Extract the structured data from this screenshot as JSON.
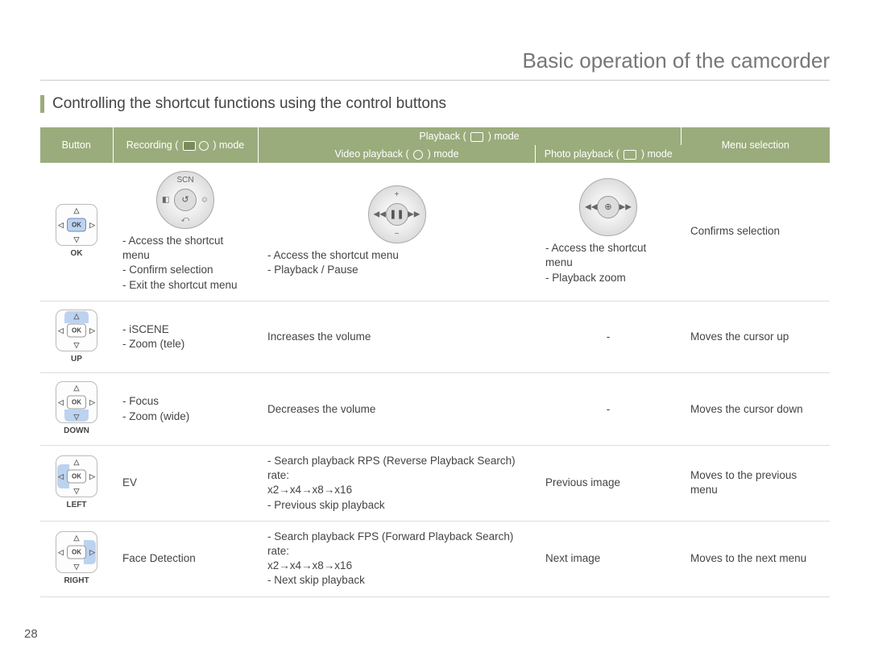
{
  "page_number": "28",
  "header_title": "Basic operation of the camcorder",
  "subtitle": "Controlling the shortcut functions using the control buttons",
  "colors": {
    "header_bg": "#9aac7c",
    "accent_border": "#9aac7c",
    "highlight": "#bcd3f0",
    "text": "#444444",
    "rule": "#dddddd"
  },
  "table_headers": {
    "button": "Button",
    "recording": "Recording (",
    "recording_suffix": ") mode",
    "playback": "Playback (",
    "playback_suffix": ") mode",
    "video_playback": "Video playback (",
    "video_playback_suffix": ") mode",
    "photo_playback": "Photo playback (",
    "photo_playback_suffix": ") mode",
    "menu_selection": "Menu selection"
  },
  "rows": [
    {
      "button_label": "OK",
      "highlight": "ok",
      "wheel_variant": "all",
      "recording": "- Access the shortcut menu\n- Confirm selection\n- Exit the shortcut menu",
      "video": "- Access the shortcut menu\n- Playback / Pause",
      "photo": "- Access the shortcut menu\n- Playback zoom",
      "menu": "Confirms selection"
    },
    {
      "button_label": "UP",
      "highlight": "up",
      "recording": "- iSCENE\n- Zoom (tele)",
      "video": "Increases the volume",
      "photo": "-",
      "menu": "Moves the cursor up"
    },
    {
      "button_label": "DOWN",
      "highlight": "down",
      "recording": "- Focus\n- Zoom (wide)",
      "video": "Decreases the volume",
      "photo": "-",
      "menu": "Moves the cursor down"
    },
    {
      "button_label": "LEFT",
      "highlight": "left",
      "recording": "EV",
      "video": "- Search playback RPS (Reverse Playback Search) rate:\n  x2→x4→x8→x16\n- Previous skip playback",
      "photo": "Previous image",
      "menu": "Moves to the previous menu"
    },
    {
      "button_label": "RIGHT",
      "highlight": "right",
      "recording": "Face Detection",
      "video": "- Search playback FPS (Forward Playback Search) rate:\n  x2→x4→x8→x16\n- Next skip playback",
      "photo": "Next image",
      "menu": "Moves to the next menu"
    }
  ],
  "wheel_icons": {
    "recording": {
      "n": "SCN",
      "s": "⤺",
      "w": "◧",
      "e": "☺",
      "c": "↺"
    },
    "video": {
      "n": "+",
      "s": "−",
      "w": "◀◀",
      "e": "▶▶",
      "c": "❚❚"
    },
    "photo": {
      "n": "",
      "s": "",
      "w": "◀◀",
      "e": "▶▶",
      "c": "⊕"
    }
  }
}
